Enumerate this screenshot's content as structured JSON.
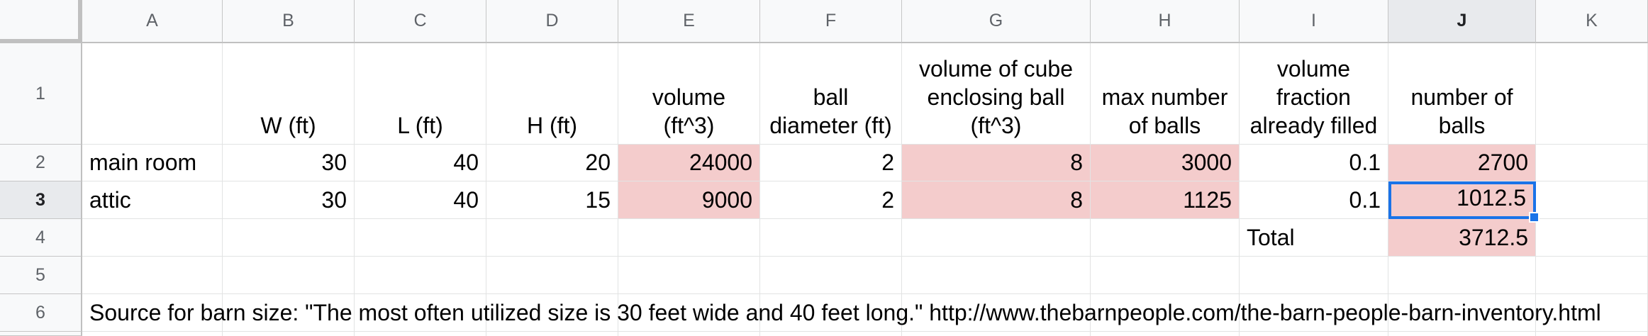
{
  "columns": [
    "A",
    "B",
    "C",
    "D",
    "E",
    "F",
    "G",
    "H",
    "I",
    "J",
    "K"
  ],
  "rows": [
    "1",
    "2",
    "3",
    "4",
    "5",
    "6"
  ],
  "selected_column": "J",
  "selected_row": "3",
  "header_row": {
    "A": "",
    "B": "W (ft)",
    "C": "L (ft)",
    "D": "H (ft)",
    "E": "volume\n(ft^3)",
    "F": "ball\ndiameter (ft)",
    "G": "volume of cube\nenclosing ball\n(ft^3)",
    "H": "max number\nof balls",
    "I": "volume\nfraction\nalready filled",
    "J": "number of\nballs",
    "K": ""
  },
  "row2": {
    "A": "main room",
    "B": "30",
    "C": "40",
    "D": "20",
    "E": "24000",
    "F": "2",
    "G": "8",
    "H": "3000",
    "I": "0.1",
    "J": "2700"
  },
  "row3": {
    "A": "attic",
    "B": "30",
    "C": "40",
    "D": "15",
    "E": "9000",
    "F": "2",
    "G": "8",
    "H": "1125",
    "I": "0.1",
    "J": "1012.5"
  },
  "row4": {
    "I": "Total",
    "J": "3712.5"
  },
  "row6": {
    "A": "Source for barn size: \"The most often utilized size is 30 feet wide and 40 feet long.\" http://www.thebarnpeople.com/the-barn-people-barn-inventory.html"
  },
  "colors": {
    "highlight": "#f4cccc",
    "selection": "#1a73e8",
    "header_bg": "#f8f9fa"
  }
}
